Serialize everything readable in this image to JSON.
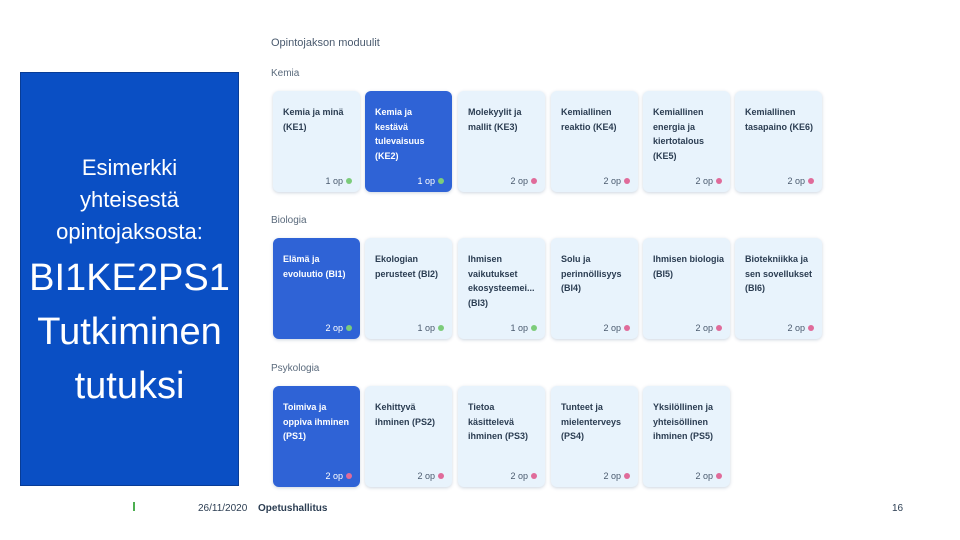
{
  "slide": {
    "lines_small": [
      "Esimerkki",
      "yhteisestä",
      "opintojaksosta:"
    ],
    "lines_big": [
      "BI1KE2PS1",
      "Tutkiminen",
      "tutuksi"
    ]
  },
  "panel": {
    "title": "Opintojakson moduulit",
    "sections": [
      {
        "label": "Kemia",
        "modules": [
          {
            "name": "Kemia ja minä (KE1)",
            "credits": "1 op",
            "dot": "green",
            "selected": false
          },
          {
            "name": "Kemia ja kestävä tulevaisuus (KE2)",
            "credits": "1 op",
            "dot": "green",
            "selected": true
          },
          {
            "name": "Molekyylit ja mallit (KE3)",
            "credits": "2 op",
            "dot": "pink",
            "selected": false
          },
          {
            "name": "Kemiallinen reaktio (KE4)",
            "credits": "2 op",
            "dot": "pink",
            "selected": false
          },
          {
            "name": "Kemiallinen energia ja kiertotalous (KE5)",
            "credits": "2 op",
            "dot": "pink",
            "selected": false
          },
          {
            "name": "Kemiallinen tasapaino (KE6)",
            "credits": "2 op",
            "dot": "pink",
            "selected": false
          }
        ]
      },
      {
        "label": "Biologia",
        "modules": [
          {
            "name": "Elämä ja evoluutio (BI1)",
            "credits": "2 op",
            "dot": "green",
            "selected": true
          },
          {
            "name": "Ekologian perusteet (BI2)",
            "credits": "1 op",
            "dot": "green",
            "selected": false
          },
          {
            "name": "Ihmisen vaikutukset ekosysteemei... (BI3)",
            "credits": "1 op",
            "dot": "green",
            "selected": false
          },
          {
            "name": "Solu ja perinnöllisyys (BI4)",
            "credits": "2 op",
            "dot": "pink",
            "selected": false
          },
          {
            "name": "Ihmisen biologia (BI5)",
            "credits": "2 op",
            "dot": "pink",
            "selected": false
          },
          {
            "name": "Biotekniikka ja sen sovellukset (BI6)",
            "credits": "2 op",
            "dot": "pink",
            "selected": false
          }
        ]
      },
      {
        "label": "Psykologia",
        "modules": [
          {
            "name": "Toimiva ja oppiva ihminen (PS1)",
            "credits": "2 op",
            "dot": "pink",
            "selected": true
          },
          {
            "name": "Kehittyvä ihminen (PS2)",
            "credits": "2 op",
            "dot": "pink",
            "selected": false
          },
          {
            "name": "Tietoa käsittelevä ihminen (PS3)",
            "credits": "2 op",
            "dot": "pink",
            "selected": false
          },
          {
            "name": "Tunteet ja mielenterveys (PS4)",
            "credits": "2 op",
            "dot": "pink",
            "selected": false
          },
          {
            "name": "Yksilöllinen ja yhteisöllinen ihminen (PS5)",
            "credits": "2 op",
            "dot": "pink",
            "selected": false
          }
        ]
      }
    ]
  },
  "footer": {
    "date": "26/11/2020",
    "organization": "Opetushallitus",
    "page_number": "16"
  },
  "colors": {
    "panel_blue": "#0a4fc4",
    "selected_card": "#2f63d6",
    "card_bg": "#e8f3fc",
    "dot_green": "#7ccc7a",
    "dot_pink": "#e06b9a"
  }
}
